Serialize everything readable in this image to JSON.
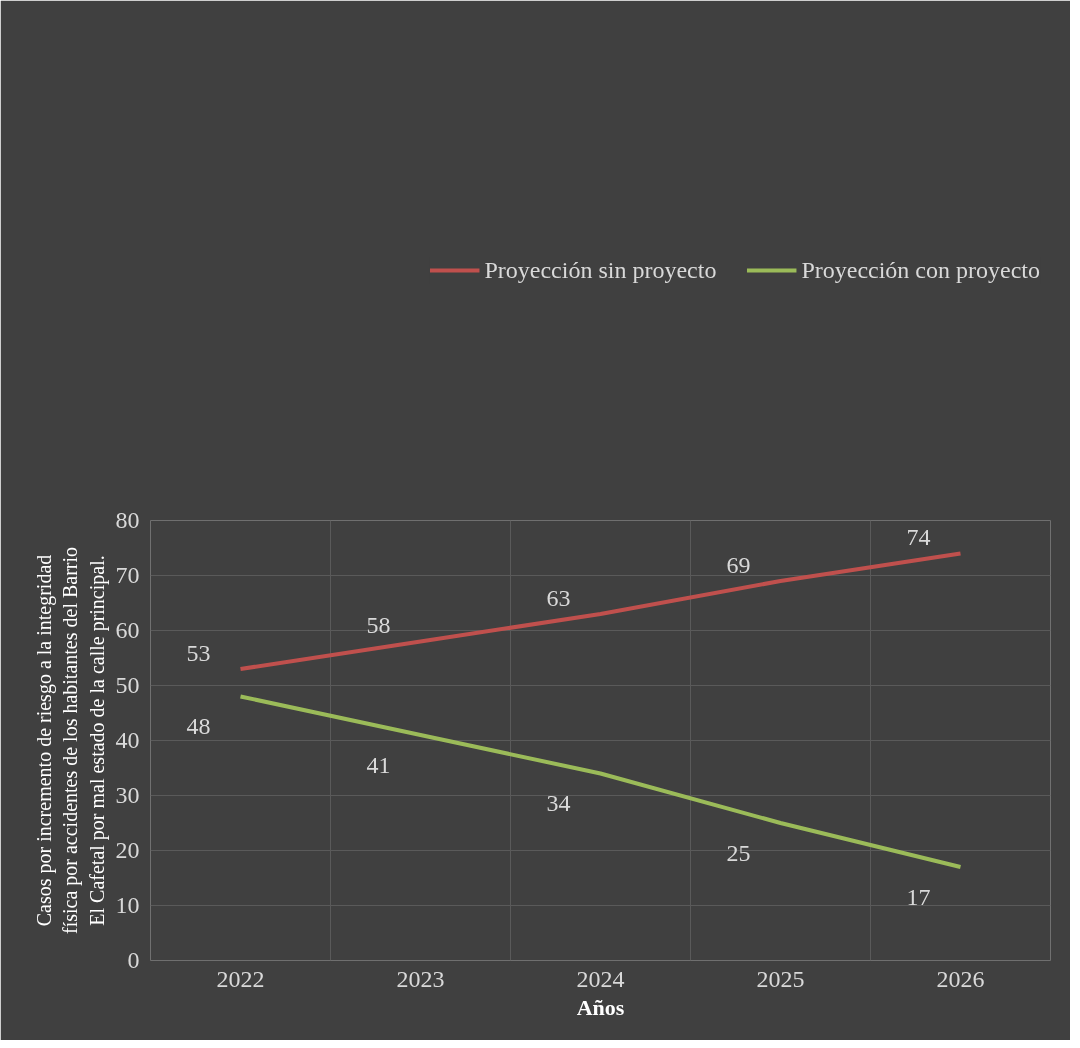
{
  "chart_data": {
    "type": "line",
    "categories": [
      "2022",
      "2023",
      "2024",
      "2025",
      "2026"
    ],
    "xlabel": "Años",
    "ylabel": "Casos por incremento de riesgo a la integridad física por accidentes de los habitantes del Barrio El Cafetal por mal estado de la calle principal.",
    "series": [
      {
        "name": "Proyección sin proyecto",
        "color": "#c0504d",
        "values": [
          53,
          58,
          63,
          69,
          74
        ]
      },
      {
        "name": "Proyección con proyecto",
        "color": "#9bbb59",
        "values": [
          48,
          41,
          34,
          25,
          17
        ]
      }
    ],
    "ylim": [
      0,
      80
    ],
    "yticks": [
      0,
      10,
      20,
      30,
      40,
      50,
      60,
      70,
      80
    ],
    "grid": true,
    "legend": "top",
    "data_labels": true,
    "marker": "none",
    "line_style": "solid"
  }
}
